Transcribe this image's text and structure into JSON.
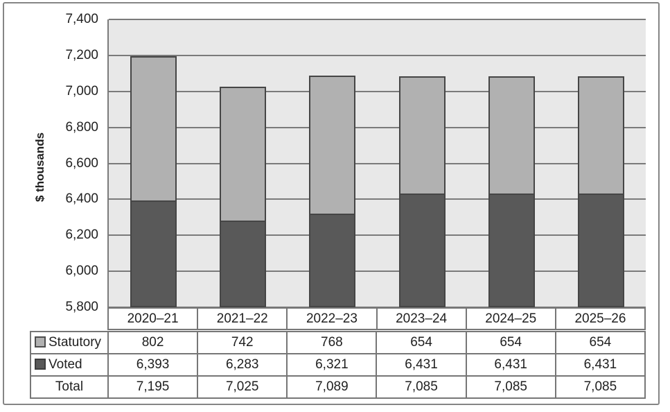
{
  "chart_data": {
    "type": "bar",
    "stacked": true,
    "title": "",
    "xlabel": "",
    "ylabel": "$ thousands",
    "ylim": [
      5800,
      7400
    ],
    "ytick_step": 200,
    "ytick_labels": [
      "5,800",
      "6,000",
      "6,200",
      "6,400",
      "6,600",
      "6,800",
      "7,000",
      "7,200",
      "7,400"
    ],
    "grid": true,
    "legend_position": "table-rows-left",
    "categories": [
      "2020–21",
      "2021–22",
      "2022–23",
      "2023–24",
      "2024–25",
      "2025–26"
    ],
    "series": [
      {
        "name": "Statutory",
        "color": "#b1b1b1",
        "values": [
          802,
          742,
          768,
          654,
          654,
          654
        ]
      },
      {
        "name": "Voted",
        "color": "#595959",
        "values": [
          6393,
          6283,
          6321,
          6431,
          6431,
          6431
        ]
      }
    ],
    "totals": [
      7195,
      7025,
      7089,
      7085,
      7085,
      7085
    ]
  },
  "table": {
    "rows": [
      {
        "label": "Statutory",
        "swatch_color": "#b1b1b1",
        "swatch_border": "#4d4d4d",
        "values": [
          "802",
          "742",
          "768",
          "654",
          "654",
          "654"
        ]
      },
      {
        "label": "Voted",
        "swatch_color": "#595959",
        "swatch_border": "#3d3d3d",
        "values": [
          "6,393",
          "6,283",
          "6,321",
          "6,431",
          "6,431",
          "6,431"
        ]
      },
      {
        "label": "Total",
        "swatch_color": null,
        "swatch_border": null,
        "values": [
          "7,195",
          "7,025",
          "7,089",
          "7,085",
          "7,085",
          "7,085"
        ]
      }
    ]
  },
  "colors": {
    "figure_border": "#858585",
    "plot_bg": "#e8e8e8",
    "gridline": "#7a7a7a",
    "bar_border": "#454545",
    "table_border": "#767676",
    "table_outer_border": "#5a5a5a",
    "text": "#1f1f1f"
  }
}
